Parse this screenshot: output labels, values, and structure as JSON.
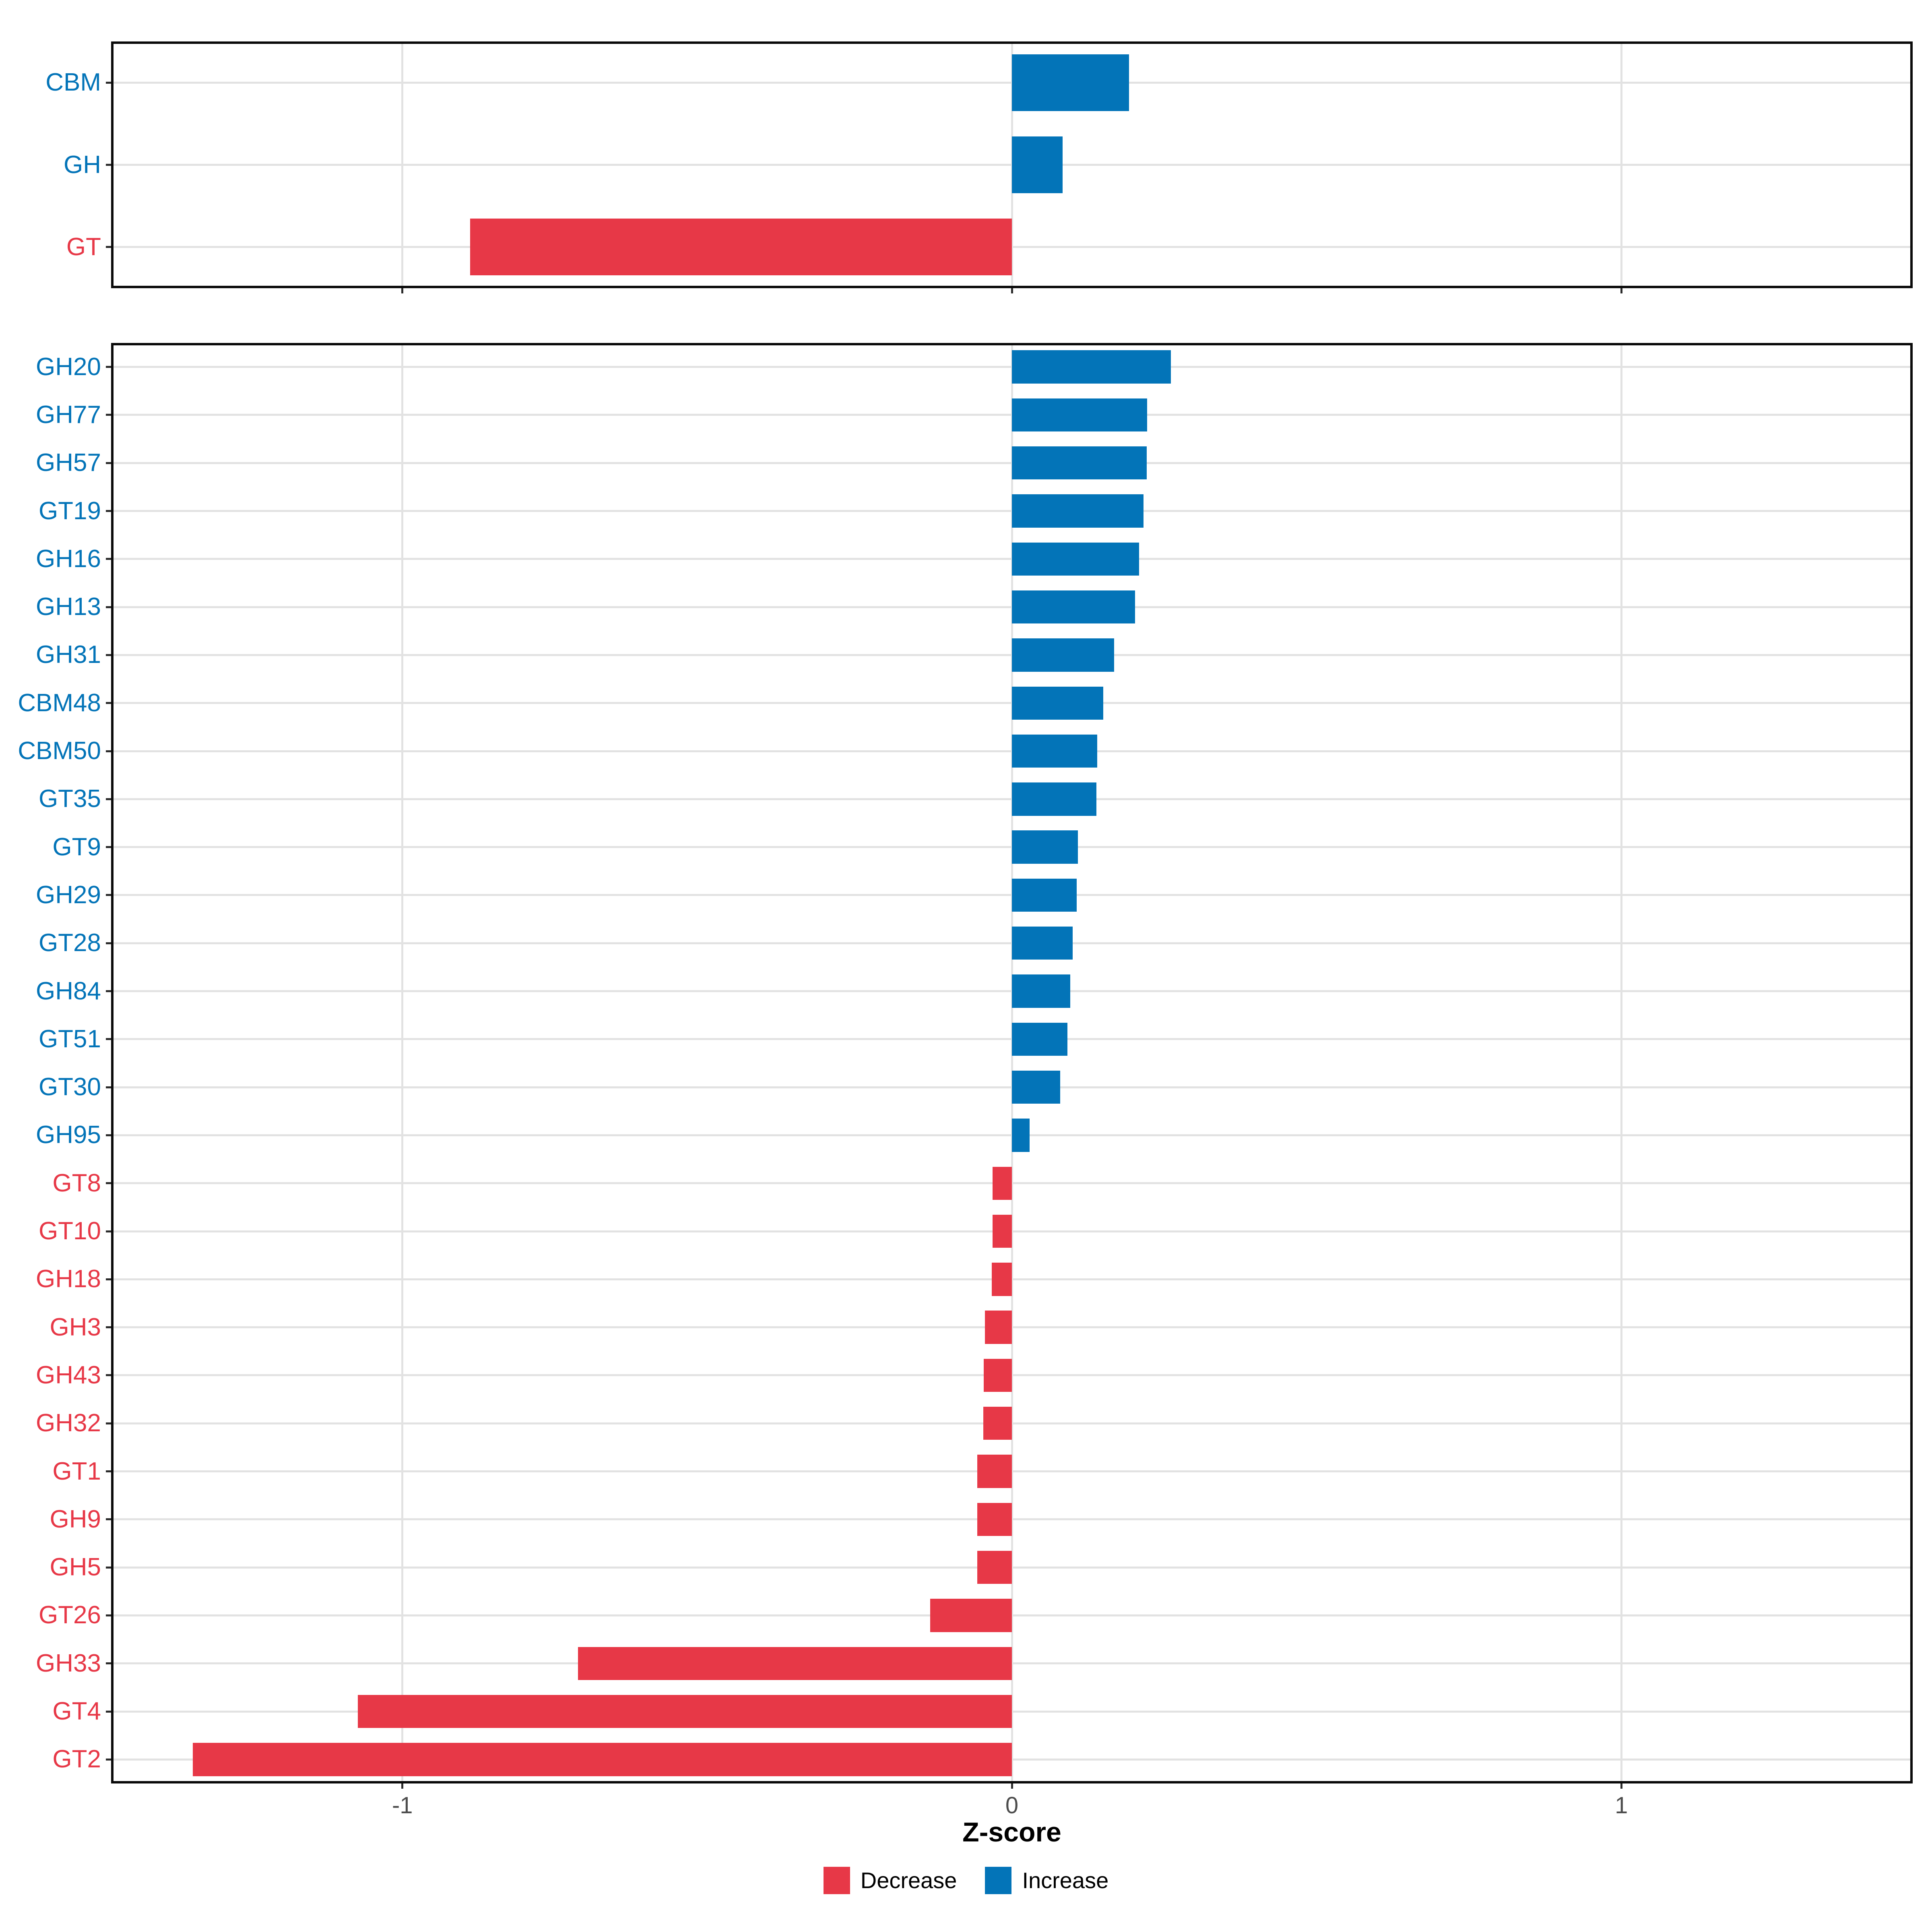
{
  "chart_data": {
    "type": "bar",
    "orientation": "horizontal",
    "xlabel": "Z-score",
    "x_domain": [
      -1.478,
      1.478
    ],
    "x_ticks": [
      -1,
      0,
      1
    ],
    "x_tick_labels": [
      "-1",
      "0",
      "1"
    ],
    "grid": "major-only",
    "legend_position": "bottom-center",
    "colors": {
      "increase": "#0374b8",
      "decrease": "#e73847"
    },
    "panels": [
      {
        "name": "class-summary",
        "categories": [
          "CBM",
          "GH",
          "GT"
        ],
        "values": [
          0.192,
          0.083,
          -0.889
        ],
        "directions": [
          "increase",
          "increase",
          "decrease"
        ]
      },
      {
        "name": "family-detail",
        "categories": [
          "GH20",
          "GH77",
          "GH57",
          "GT19",
          "GH16",
          "GH13",
          "GH31",
          "CBM48",
          "CBM50",
          "GT35",
          "GT9",
          "GH29",
          "GT28",
          "GH84",
          "GT51",
          "GT30",
          "GH95",
          "GT8",
          "GT10",
          "GH18",
          "GH3",
          "GH43",
          "GH32",
          "GT1",
          "GH9",
          "GH5",
          "GT26",
          "GH33",
          "GT4",
          "GT2"
        ],
        "values": [
          0.261,
          0.222,
          0.221,
          0.216,
          0.209,
          0.202,
          0.168,
          0.15,
          0.14,
          0.139,
          0.108,
          0.106,
          0.1,
          0.096,
          0.091,
          0.079,
          0.029,
          -0.032,
          -0.032,
          -0.033,
          -0.044,
          -0.046,
          -0.047,
          -0.057,
          -0.057,
          -0.057,
          -0.134,
          -0.712,
          -1.073,
          -1.344
        ],
        "directions": [
          "increase",
          "increase",
          "increase",
          "increase",
          "increase",
          "increase",
          "increase",
          "increase",
          "increase",
          "increase",
          "increase",
          "increase",
          "increase",
          "increase",
          "increase",
          "increase",
          "increase",
          "decrease",
          "decrease",
          "decrease",
          "decrease",
          "decrease",
          "decrease",
          "decrease",
          "decrease",
          "decrease",
          "decrease",
          "decrease",
          "decrease",
          "decrease"
        ]
      }
    ],
    "legend": [
      {
        "label": "Decrease",
        "color_key": "decrease"
      },
      {
        "label": "Increase",
        "color_key": "increase"
      }
    ]
  }
}
